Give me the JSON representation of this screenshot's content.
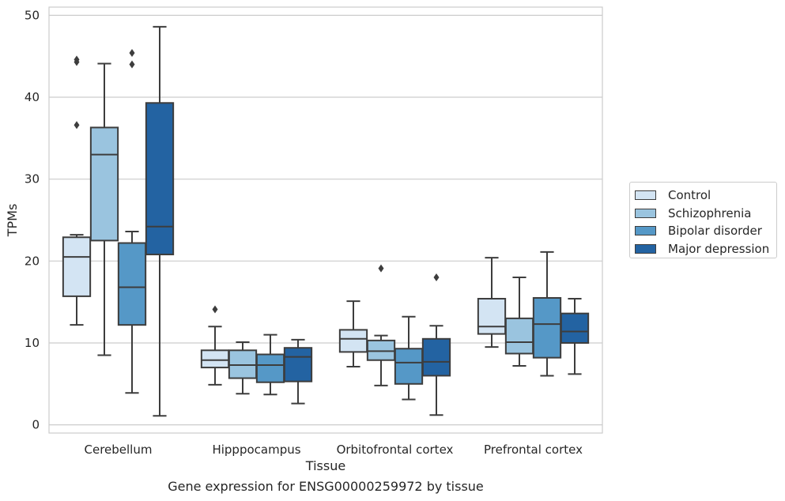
{
  "caption": "Gene expression for ENSG00000259972 by tissue",
  "chart_data": {
    "type": "box",
    "xlabel": "Tissue",
    "ylabel": "TPMs",
    "ylim": [
      -1,
      51
    ],
    "yticks": [
      0,
      10,
      20,
      30,
      40,
      50
    ],
    "grid": true,
    "legend_position": "right",
    "categories": [
      "Cerebellum",
      "Hipppocampus",
      "Orbitofrontal cortex",
      "Prefrontal cortex"
    ],
    "series": [
      {
        "name": "Control",
        "color": "#d3e4f3",
        "boxes": [
          {
            "whislo": 12.2,
            "q1": 15.7,
            "med": 20.5,
            "q3": 22.9,
            "whishi": 23.2,
            "fliers": [
              36.6,
              44.3,
              44.6
            ]
          },
          {
            "whislo": 4.9,
            "q1": 7.0,
            "med": 7.9,
            "q3": 9.1,
            "whishi": 12.0,
            "fliers": [
              14.1
            ]
          },
          {
            "whislo": 7.1,
            "q1": 8.9,
            "med": 10.5,
            "q3": 11.6,
            "whishi": 15.1,
            "fliers": []
          },
          {
            "whislo": 9.5,
            "q1": 11.1,
            "med": 12.0,
            "q3": 15.4,
            "whishi": 20.4,
            "fliers": []
          }
        ]
      },
      {
        "name": "Schizophrenia",
        "color": "#9ac4df",
        "boxes": [
          {
            "whislo": 8.5,
            "q1": 22.5,
            "med": 33.0,
            "q3": 36.3,
            "whishi": 44.1,
            "fliers": []
          },
          {
            "whislo": 3.8,
            "q1": 5.7,
            "med": 7.3,
            "q3": 9.1,
            "whishi": 10.1,
            "fliers": []
          },
          {
            "whislo": 4.8,
            "q1": 7.9,
            "med": 9.0,
            "q3": 10.3,
            "whishi": 10.9,
            "fliers": [
              19.1
            ]
          },
          {
            "whislo": 7.2,
            "q1": 8.7,
            "med": 10.1,
            "q3": 13.0,
            "whishi": 18.0,
            "fliers": []
          }
        ]
      },
      {
        "name": "Bipolar disorder",
        "color": "#5598c7",
        "boxes": [
          {
            "whislo": 3.9,
            "q1": 12.2,
            "med": 16.8,
            "q3": 22.2,
            "whishi": 23.6,
            "fliers": [
              44.0,
              45.4
            ]
          },
          {
            "whislo": 3.7,
            "q1": 5.2,
            "med": 7.3,
            "q3": 8.6,
            "whishi": 11.0,
            "fliers": []
          },
          {
            "whislo": 3.1,
            "q1": 5.0,
            "med": 7.6,
            "q3": 9.3,
            "whishi": 13.2,
            "fliers": []
          },
          {
            "whislo": 6.0,
            "q1": 8.2,
            "med": 12.3,
            "q3": 15.5,
            "whishi": 21.1,
            "fliers": []
          }
        ]
      },
      {
        "name": "Major depression",
        "color": "#2363a2",
        "boxes": [
          {
            "whislo": 1.1,
            "q1": 20.8,
            "med": 24.2,
            "q3": 39.3,
            "whishi": 48.6,
            "fliers": []
          },
          {
            "whislo": 2.6,
            "q1": 5.3,
            "med": 8.3,
            "q3": 9.4,
            "whishi": 10.4,
            "fliers": []
          },
          {
            "whislo": 1.2,
            "q1": 6.0,
            "med": 7.7,
            "q3": 10.5,
            "whishi": 12.1,
            "fliers": [
              18.0
            ]
          },
          {
            "whislo": 6.2,
            "q1": 10.0,
            "med": 11.4,
            "q3": 13.6,
            "whishi": 15.4,
            "fliers": []
          }
        ]
      }
    ]
  }
}
